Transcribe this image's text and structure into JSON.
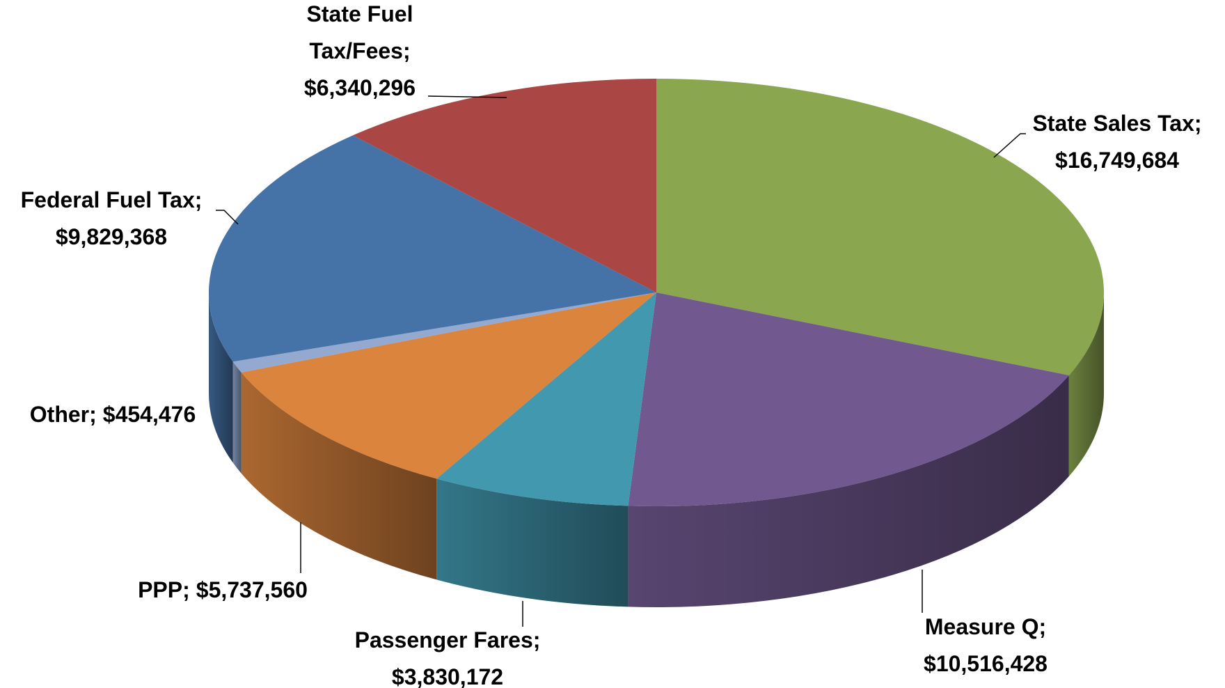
{
  "chart_data": {
    "type": "pie3d",
    "categories": [
      "State Sales Tax",
      "Measure Q",
      "Passenger Fares",
      "PPP",
      "Other",
      "Federal Fuel Tax",
      "State Fuel Tax/Fees"
    ],
    "values": [
      16749684,
      10516428,
      3830172,
      5737560,
      454476,
      9829368,
      6340296
    ],
    "value_labels": [
      "$16,749,684",
      "$10,516,428",
      "$3,830,172",
      "$5,737,560",
      "$454,476",
      "$9,829,368",
      "$6,340,296"
    ],
    "label_separator": ";",
    "colors": [
      "#8aa64f",
      "#71588f",
      "#4198af",
      "#db843d",
      "#93a9d0",
      "#4572a7",
      "#aa4643"
    ]
  }
}
